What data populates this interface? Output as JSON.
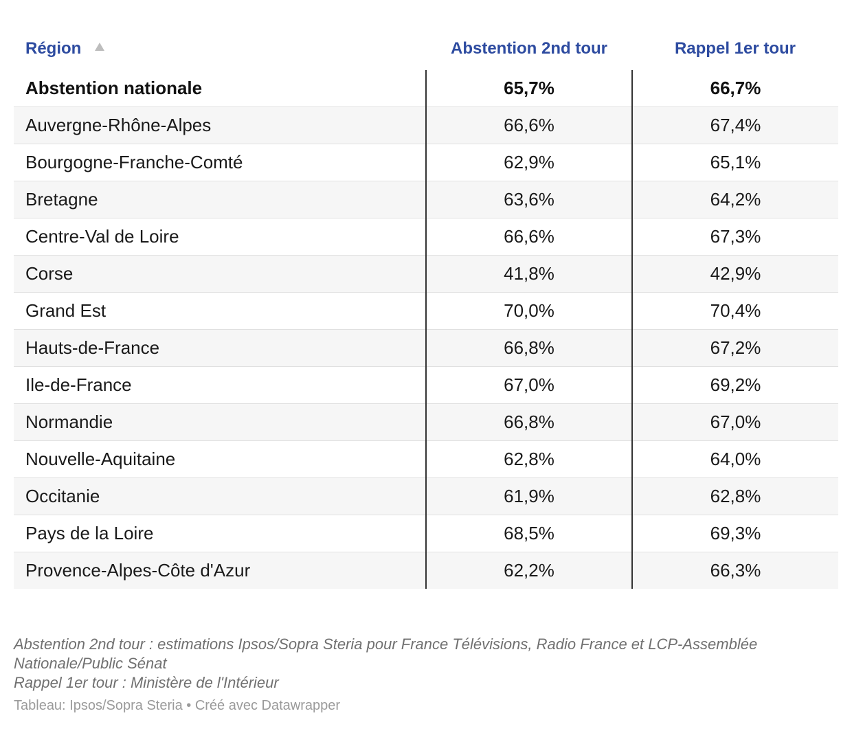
{
  "chart_data": {
    "type": "table",
    "columns": [
      "Région",
      "Abstention 2nd tour",
      "Rappel 1er tour"
    ],
    "rows": [
      {
        "region": "Abstention nationale",
        "abstention_2nd": "65,7%",
        "rappel_1er": "66,7%"
      },
      {
        "region": "Auvergne-Rhône-Alpes",
        "abstention_2nd": "66,6%",
        "rappel_1er": "67,4%"
      },
      {
        "region": "Bourgogne-Franche-Comté",
        "abstention_2nd": "62,9%",
        "rappel_1er": "65,1%"
      },
      {
        "region": "Bretagne",
        "abstention_2nd": "63,6%",
        "rappel_1er": "64,2%"
      },
      {
        "region": "Centre-Val de Loire",
        "abstention_2nd": "66,6%",
        "rappel_1er": "67,3%"
      },
      {
        "region": "Corse",
        "abstention_2nd": "41,8%",
        "rappel_1er": "42,9%"
      },
      {
        "region": "Grand Est",
        "abstention_2nd": "70,0%",
        "rappel_1er": "70,4%"
      },
      {
        "region": "Hauts-de-France",
        "abstention_2nd": "66,8%",
        "rappel_1er": "67,2%"
      },
      {
        "region": "Ile-de-France",
        "abstention_2nd": "67,0%",
        "rappel_1er": "69,2%"
      },
      {
        "region": "Normandie",
        "abstention_2nd": "66,8%",
        "rappel_1er": "67,0%"
      },
      {
        "region": "Nouvelle-Aquitaine",
        "abstention_2nd": "62,8%",
        "rappel_1er": "64,0%"
      },
      {
        "region": "Occitanie",
        "abstention_2nd": "61,9%",
        "rappel_1er": "62,8%"
      },
      {
        "region": "Pays de la Loire",
        "abstention_2nd": "68,5%",
        "rappel_1er": "69,3%"
      },
      {
        "region": "Provence-Alpes-Côte d'Azur",
        "abstention_2nd": "62,2%",
        "rappel_1er": "66,3%"
      }
    ],
    "highlight_row": "Abstention nationale",
    "sort_column": "Région",
    "sort_direction": "ascending"
  },
  "notes": {
    "line1": "Abstention 2nd tour : estimations Ipsos/Sopra Steria pour France Télévisions, Radio France et LCP-Assemblée Nationale/Public Sénat",
    "line2": "Rappel 1er tour : Ministère de l'Intérieur"
  },
  "footer": {
    "text": "Tableau: Ipsos/Sopra Steria • Créé avec Datawrapper"
  },
  "colors": {
    "header_text": "#2d4ba0",
    "body_text": "#1a1a1a",
    "row_alt_bg": "#f6f6f6",
    "notes_text": "#707070",
    "footer_text": "#9a9a9a"
  },
  "icons": {
    "sort": "sort-ascending-icon"
  }
}
